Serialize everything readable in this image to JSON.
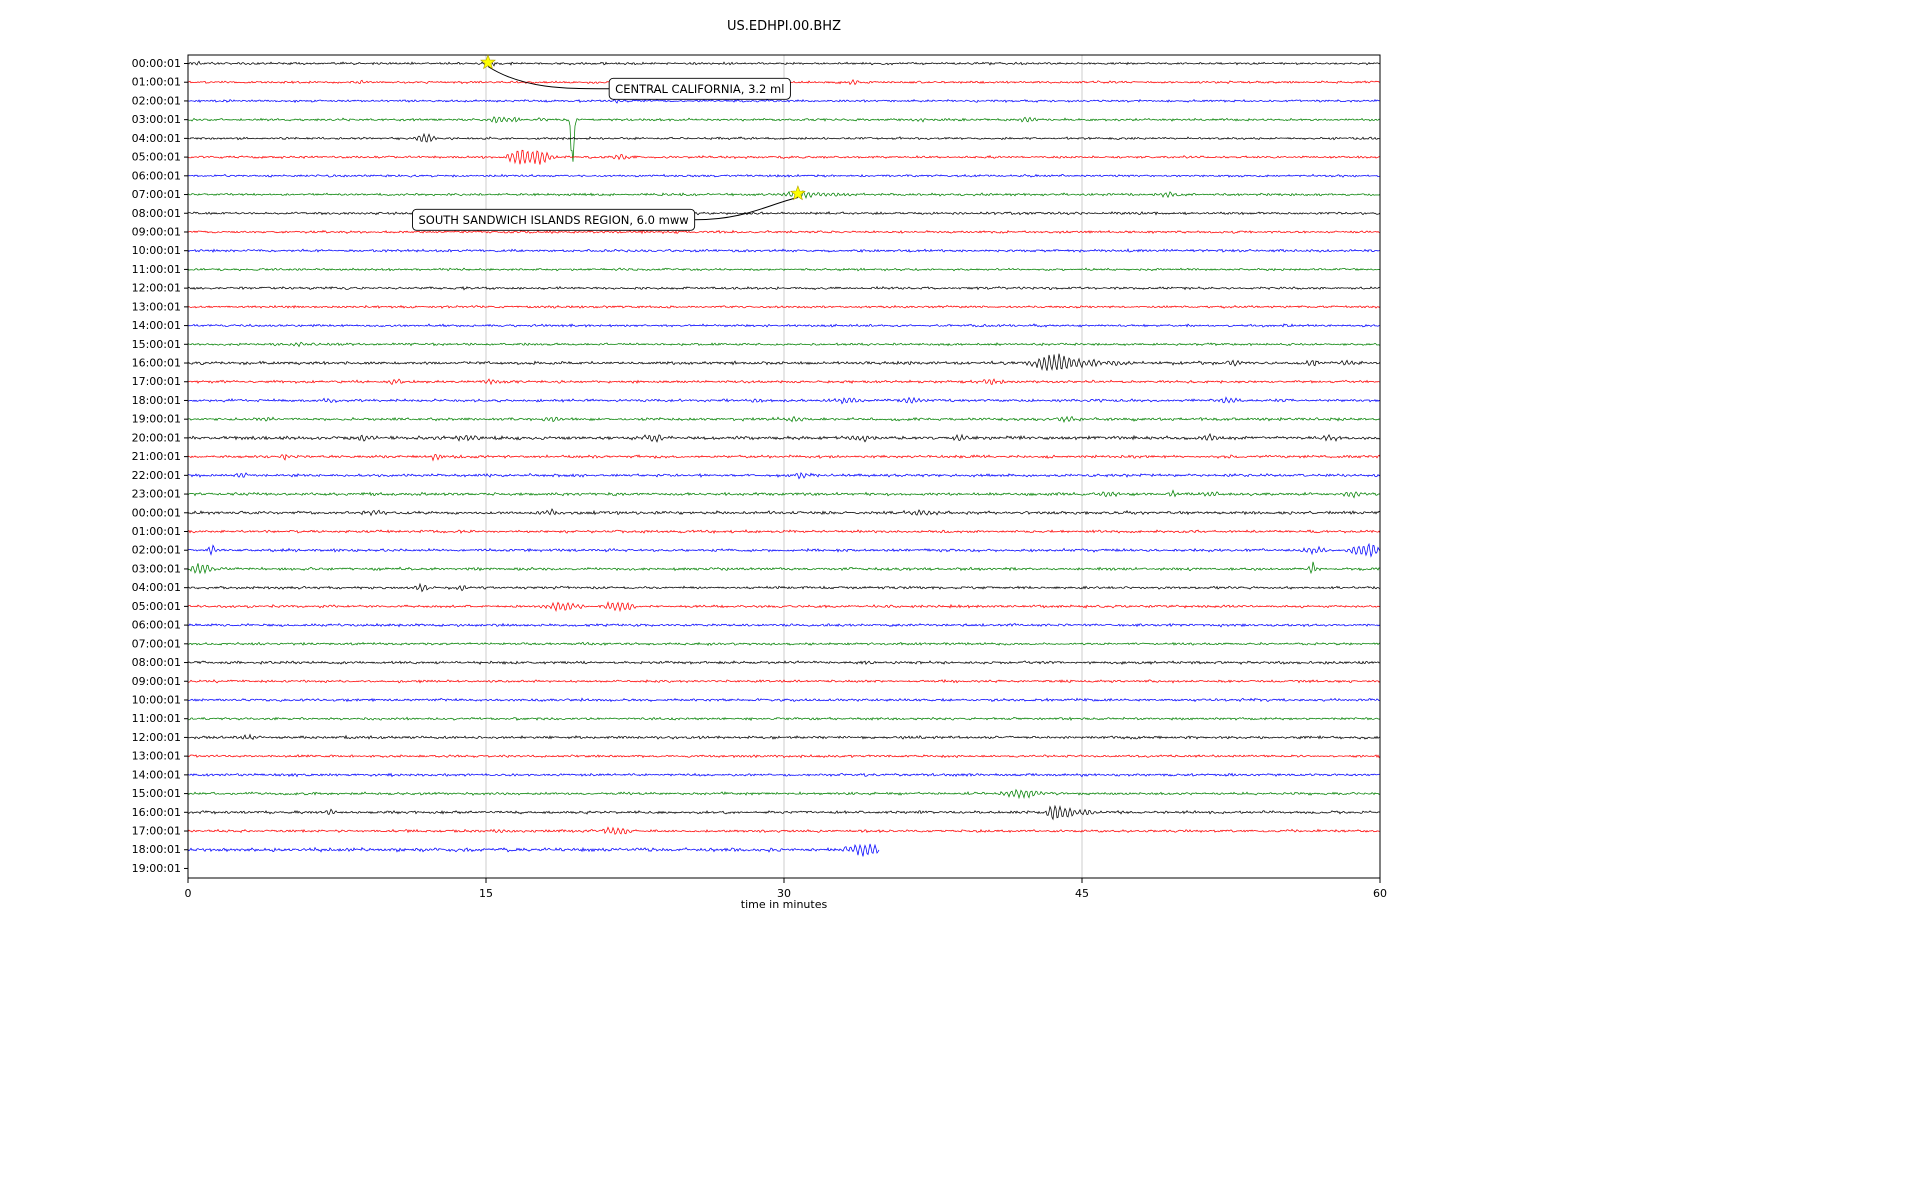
{
  "chart_data": {
    "type": "line",
    "subtype": "seismogram-dayplot",
    "title": "US.EDHPI.00.BHZ",
    "xlabel": "time in minutes",
    "xlim": [
      0,
      60
    ],
    "x_ticks": [
      0,
      15,
      30,
      45,
      60
    ],
    "grid_x": [
      15,
      30,
      45
    ],
    "grid_on": true,
    "legend": "none",
    "marker_color": "#ffff00",
    "trace_colors": {
      "black": "#000000",
      "red": "#ff0000",
      "blue": "#0000ff",
      "green": "#008000"
    },
    "rows": [
      {
        "label": "00:00:01",
        "color": "black",
        "amp": 1.2,
        "bursts": [
          [
            0.4,
            3,
            0.15
          ],
          [
            15.2,
            2.2,
            0.25
          ]
        ]
      },
      {
        "label": "01:00:01",
        "color": "red",
        "amp": 1.2,
        "bursts": [
          [
            8.7,
            2.2,
            0.2
          ],
          [
            33.5,
            2,
            0.25
          ]
        ]
      },
      {
        "label": "02:00:01",
        "color": "blue",
        "amp": 1.2,
        "bursts": [
          [
            21.5,
            1.8,
            0.3
          ]
        ]
      },
      {
        "label": "03:00:01",
        "color": "green",
        "amp": 1.3,
        "bursts": [
          [
            15.6,
            4.5,
            0.3
          ],
          [
            16.4,
            3.5,
            0.2
          ],
          [
            17.8,
            2.5,
            0.2
          ],
          [
            19.35,
            -52,
            0.07
          ],
          [
            36.8,
            2.2,
            0.3
          ],
          [
            42.3,
            2.6,
            0.4
          ]
        ]
      },
      {
        "label": "04:00:01",
        "color": "black",
        "amp": 1.2,
        "bursts": [
          [
            11.6,
            2.5,
            0.2
          ],
          [
            12.1,
            5.5,
            0.25
          ]
        ]
      },
      {
        "label": "05:00:01",
        "color": "red",
        "amp": 1.2,
        "bursts": [
          [
            16.6,
            5,
            0.35
          ],
          [
            17.2,
            8,
            0.5
          ],
          [
            18.0,
            4,
            0.3
          ],
          [
            21.8,
            3.5,
            0.25
          ]
        ]
      },
      {
        "label": "06:00:01",
        "color": "blue",
        "amp": 1.2,
        "bursts": []
      },
      {
        "label": "07:00:01",
        "color": "green",
        "amp": 1.3,
        "bursts": [
          [
            30.7,
            3.2,
            0.4
          ],
          [
            32,
            2,
            1.2
          ],
          [
            49.3,
            2.8,
            0.4
          ]
        ]
      },
      {
        "label": "08:00:01",
        "color": "black",
        "amp": 1.3,
        "bursts": []
      },
      {
        "label": "09:00:01",
        "color": "red",
        "amp": 1.3,
        "bursts": []
      },
      {
        "label": "10:00:01",
        "color": "blue",
        "amp": 1.4,
        "bursts": []
      },
      {
        "label": "11:00:01",
        "color": "green",
        "amp": 1.2,
        "bursts": []
      },
      {
        "label": "12:00:01",
        "color": "black",
        "amp": 1.3,
        "bursts": []
      },
      {
        "label": "13:00:01",
        "color": "red",
        "amp": 1.2,
        "bursts": []
      },
      {
        "label": "14:00:01",
        "color": "blue",
        "amp": 1.3,
        "bursts": []
      },
      {
        "label": "15:00:01",
        "color": "green",
        "amp": 1.3,
        "bursts": [
          [
            5.5,
            2.5,
            0.3
          ]
        ]
      },
      {
        "label": "16:00:01",
        "color": "black",
        "amp": 1.6,
        "bursts": [
          [
            43.2,
            8,
            0.45
          ],
          [
            43.9,
            6.5,
            0.4
          ],
          [
            44.8,
            4.5,
            0.35
          ],
          [
            45.7,
            3.5,
            0.3
          ],
          [
            47,
            2.5,
            0.4
          ],
          [
            52.7,
            3.5,
            0.2
          ],
          [
            56.6,
            3.5,
            0.3
          ],
          [
            58.4,
            3,
            0.3
          ]
        ]
      },
      {
        "label": "17:00:01",
        "color": "red",
        "amp": 1.4,
        "bursts": [
          [
            10.4,
            3,
            0.25
          ],
          [
            15.2,
            2.6,
            0.25
          ],
          [
            40.3,
            3.5,
            0.3
          ]
        ]
      },
      {
        "label": "18:00:01",
        "color": "blue",
        "amp": 1.5,
        "bursts": [
          [
            7.0,
            2.6,
            0.3
          ],
          [
            28.5,
            2.4,
            0.3
          ],
          [
            33.2,
            3.5,
            0.4
          ],
          [
            36.5,
            3.5,
            0.4
          ],
          [
            52.3,
            3.2,
            0.3
          ]
        ]
      },
      {
        "label": "19:00:01",
        "color": "green",
        "amp": 1.5,
        "bursts": [
          [
            4.0,
            2.4,
            0.3
          ],
          [
            18.3,
            2.6,
            0.3
          ],
          [
            30.5,
            2.6,
            0.3
          ],
          [
            44.3,
            2.8,
            0.4
          ]
        ]
      },
      {
        "label": "20:00:01",
        "color": "black",
        "amp": 1.8,
        "bursts": [
          [
            9.0,
            2.6,
            0.4
          ],
          [
            14.0,
            3.2,
            0.4
          ],
          [
            23.5,
            3.4,
            0.4
          ],
          [
            33.8,
            3.4,
            0.5
          ],
          [
            38.9,
            3,
            0.3
          ],
          [
            51.5,
            3,
            0.3
          ],
          [
            57.5,
            3,
            0.3
          ]
        ]
      },
      {
        "label": "21:00:01",
        "color": "red",
        "amp": 1.5,
        "bursts": [
          [
            4.9,
            3.5,
            0.2
          ],
          [
            12.4,
            4,
            0.2
          ]
        ]
      },
      {
        "label": "22:00:01",
        "color": "blue",
        "amp": 1.5,
        "bursts": [
          [
            2.7,
            3.5,
            0.2
          ],
          [
            30.8,
            3,
            0.3
          ]
        ]
      },
      {
        "label": "23:00:01",
        "color": "green",
        "amp": 1.5,
        "bursts": [
          [
            46.2,
            2.8,
            0.4
          ],
          [
            49.5,
            3,
            0.3
          ],
          [
            51.5,
            2.8,
            0.3
          ],
          [
            58.6,
            2.8,
            0.3
          ]
        ]
      },
      {
        "label": "00:00:01",
        "color": "black",
        "amp": 1.6,
        "bursts": [
          [
            9.4,
            3,
            0.4
          ],
          [
            18.3,
            2.8,
            0.4
          ],
          [
            37.0,
            2.6,
            0.5
          ]
        ]
      },
      {
        "label": "01:00:01",
        "color": "red",
        "amp": 1.4,
        "bursts": []
      },
      {
        "label": "02:00:01",
        "color": "blue",
        "amp": 1.5,
        "bursts": [
          [
            1.2,
            6.5,
            0.12
          ],
          [
            56.6,
            3.5,
            0.4
          ],
          [
            58.9,
            5,
            0.4
          ],
          [
            59.6,
            5.5,
            0.3
          ]
        ]
      },
      {
        "label": "03:00:01",
        "color": "green",
        "amp": 1.5,
        "bursts": [
          [
            0.5,
            5.5,
            0.25
          ],
          [
            1.0,
            3.5,
            0.2
          ],
          [
            56.6,
            8.5,
            0.1
          ]
        ]
      },
      {
        "label": "04:00:01",
        "color": "black",
        "amp": 1.4,
        "bursts": [
          [
            11.8,
            4.5,
            0.22
          ],
          [
            13.8,
            2.6,
            0.2
          ]
        ]
      },
      {
        "label": "05:00:01",
        "color": "red",
        "amp": 1.4,
        "bursts": [
          [
            18.9,
            4.5,
            0.6
          ],
          [
            21.4,
            5.5,
            0.3
          ],
          [
            22.1,
            4.5,
            0.25
          ]
        ]
      },
      {
        "label": "06:00:01",
        "color": "blue",
        "amp": 1.4,
        "bursts": []
      },
      {
        "label": "07:00:01",
        "color": "green",
        "amp": 1.3,
        "bursts": []
      },
      {
        "label": "08:00:01",
        "color": "black",
        "amp": 1.5,
        "bursts": []
      },
      {
        "label": "09:00:01",
        "color": "red",
        "amp": 1.3,
        "bursts": []
      },
      {
        "label": "10:00:01",
        "color": "blue",
        "amp": 1.4,
        "bursts": []
      },
      {
        "label": "11:00:01",
        "color": "green",
        "amp": 1.3,
        "bursts": []
      },
      {
        "label": "12:00:01",
        "color": "black",
        "amp": 1.5,
        "bursts": [
          [
            3.0,
            2.2,
            0.4
          ]
        ]
      },
      {
        "label": "13:00:01",
        "color": "red",
        "amp": 1.3,
        "bursts": []
      },
      {
        "label": "14:00:01",
        "color": "blue",
        "amp": 1.4,
        "bursts": []
      },
      {
        "label": "15:00:01",
        "color": "green",
        "amp": 1.4,
        "bursts": [
          [
            41.8,
            4,
            0.5
          ],
          [
            42.6,
            3,
            0.3
          ]
        ]
      },
      {
        "label": "16:00:01",
        "color": "black",
        "amp": 1.5,
        "bursts": [
          [
            7.2,
            4.5,
            0.22
          ],
          [
            43.6,
            8,
            0.3
          ],
          [
            44.3,
            5.5,
            0.3
          ],
          [
            45.2,
            3.5,
            0.3
          ]
        ]
      },
      {
        "label": "17:00:01",
        "color": "red",
        "amp": 1.4,
        "bursts": [
          [
            15.8,
            3,
            0.25
          ],
          [
            21.3,
            3.5,
            0.35
          ],
          [
            21.9,
            3,
            0.2
          ]
        ]
      },
      {
        "label": "18:00:01",
        "color": "blue",
        "amp": 2.0,
        "end_x": 34.8,
        "bursts": [
          [
            33.7,
            5.5,
            0.5
          ],
          [
            34.4,
            4.5,
            0.3
          ]
        ]
      },
      {
        "label": "19:00:01",
        "color": "green",
        "amp": 0,
        "bursts": []
      }
    ],
    "events": [
      {
        "label": "CENTRAL CALIFORNIA, 3.2 ml",
        "star_x": 15.1,
        "star_row": 0,
        "box_x": 21.2,
        "box_row": 1.35,
        "box_side": "right-of-star"
      },
      {
        "label": "SOUTH SANDWICH ISLANDS REGION, 6.0 mww",
        "star_x": 30.7,
        "star_row": 7,
        "box_x": 11.3,
        "box_row": 8.35,
        "box_side": "left-of-star"
      }
    ]
  }
}
